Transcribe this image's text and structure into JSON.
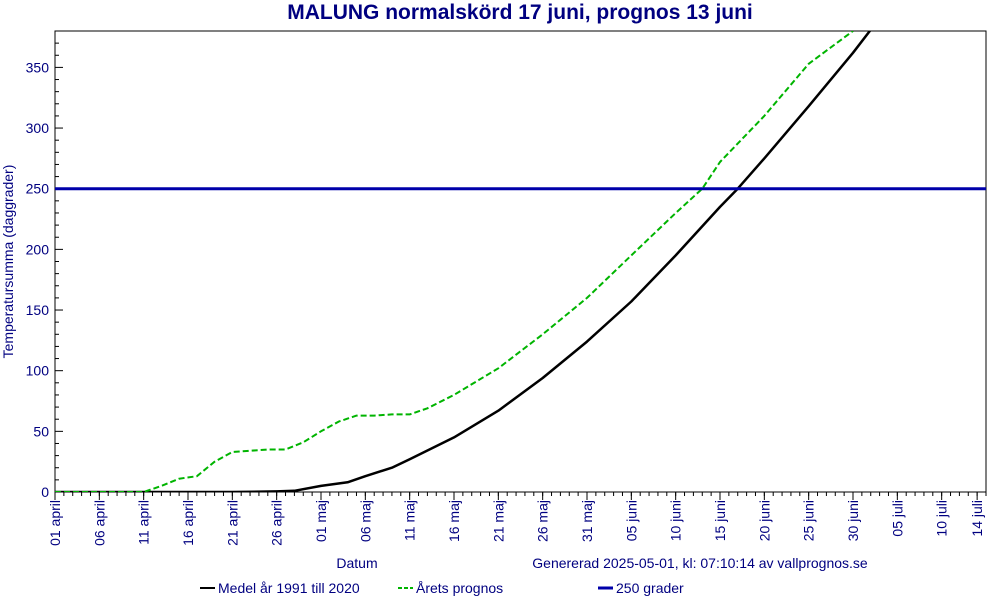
{
  "chart_data": {
    "type": "line",
    "title": "MALUNG normalskörd 17 juni, prognos 13 juni",
    "xlabel": "Datum",
    "ylabel": "Temperatursumma (daggrader)",
    "footer": "Genererad 2025-05-01, kl: 07:10:14 av vallprognos.se",
    "x_domain": [
      "2025-04-01",
      "2025-07-15"
    ],
    "ylim": [
      0,
      380
    ],
    "y_ticks": [
      0,
      50,
      100,
      150,
      200,
      250,
      300,
      350
    ],
    "x_ticks": [
      {
        "date": "2025-04-01",
        "label": "01 april"
      },
      {
        "date": "2025-04-06",
        "label": "06 april"
      },
      {
        "date": "2025-04-11",
        "label": "11 april"
      },
      {
        "date": "2025-04-16",
        "label": "16 april"
      },
      {
        "date": "2025-04-21",
        "label": "21 april"
      },
      {
        "date": "2025-04-26",
        "label": "26 april"
      },
      {
        "date": "2025-05-01",
        "label": "01 maj"
      },
      {
        "date": "2025-05-06",
        "label": "06 maj"
      },
      {
        "date": "2025-05-11",
        "label": "11 maj"
      },
      {
        "date": "2025-05-16",
        "label": "16 maj"
      },
      {
        "date": "2025-05-21",
        "label": "21 maj"
      },
      {
        "date": "2025-05-26",
        "label": "26 maj"
      },
      {
        "date": "2025-05-31",
        "label": "31 maj"
      },
      {
        "date": "2025-06-05",
        "label": "05 juni"
      },
      {
        "date": "2025-06-10",
        "label": "10 juni"
      },
      {
        "date": "2025-06-15",
        "label": "15 juni"
      },
      {
        "date": "2025-06-20",
        "label": "20 juni"
      },
      {
        "date": "2025-06-25",
        "label": "25 juni"
      },
      {
        "date": "2025-06-30",
        "label": "30 juni"
      },
      {
        "date": "2025-07-05",
        "label": "05 juli"
      },
      {
        "date": "2025-07-10",
        "label": "10 juli"
      },
      {
        "date": "2025-07-14",
        "label": "14 juli"
      }
    ],
    "series": [
      {
        "name": "Medel år 1991 till 2020",
        "color": "#000000",
        "style": "solid",
        "points": [
          [
            "2025-04-01",
            0
          ],
          [
            "2025-04-11",
            0
          ],
          [
            "2025-04-16",
            0
          ],
          [
            "2025-04-21",
            0
          ],
          [
            "2025-04-26",
            0.5
          ],
          [
            "2025-04-28",
            1
          ],
          [
            "2025-05-01",
            5
          ],
          [
            "2025-05-04",
            8
          ],
          [
            "2025-05-06",
            13
          ],
          [
            "2025-05-09",
            20
          ],
          [
            "2025-05-11",
            27
          ],
          [
            "2025-05-16",
            45
          ],
          [
            "2025-05-21",
            67
          ],
          [
            "2025-05-26",
            94
          ],
          [
            "2025-05-31",
            124
          ],
          [
            "2025-06-05",
            157
          ],
          [
            "2025-06-10",
            195
          ],
          [
            "2025-06-15",
            235
          ],
          [
            "2025-06-17",
            250
          ],
          [
            "2025-06-20",
            275
          ],
          [
            "2025-06-25",
            318
          ],
          [
            "2025-06-30",
            362
          ],
          [
            "2025-07-04",
            400
          ]
        ]
      },
      {
        "name": "Årets prognos",
        "color": "#00b400",
        "style": "dashed",
        "points": [
          [
            "2025-04-01",
            0
          ],
          [
            "2025-04-11",
            0
          ],
          [
            "2025-04-13",
            5
          ],
          [
            "2025-04-15",
            11
          ],
          [
            "2025-04-17",
            13
          ],
          [
            "2025-04-19",
            25
          ],
          [
            "2025-04-21",
            33
          ],
          [
            "2025-04-23",
            34
          ],
          [
            "2025-04-25",
            35
          ],
          [
            "2025-04-27",
            35
          ],
          [
            "2025-04-29",
            41
          ],
          [
            "2025-05-01",
            50
          ],
          [
            "2025-05-03",
            58
          ],
          [
            "2025-05-05",
            63
          ],
          [
            "2025-05-07",
            63
          ],
          [
            "2025-05-09",
            64
          ],
          [
            "2025-05-11",
            64
          ],
          [
            "2025-05-13",
            69
          ],
          [
            "2025-05-16",
            80
          ],
          [
            "2025-05-21",
            102
          ],
          [
            "2025-05-26",
            130
          ],
          [
            "2025-05-31",
            160
          ],
          [
            "2025-06-05",
            195
          ],
          [
            "2025-06-10",
            230
          ],
          [
            "2025-06-13",
            250
          ],
          [
            "2025-06-15",
            272
          ],
          [
            "2025-06-20",
            310
          ],
          [
            "2025-06-25",
            353
          ],
          [
            "2025-06-30",
            380
          ]
        ]
      },
      {
        "name": "250 grader",
        "color": "#0000aa",
        "style": "solid",
        "points": [
          [
            "2025-04-01",
            250
          ],
          [
            "2025-07-15",
            250
          ]
        ]
      }
    ]
  }
}
